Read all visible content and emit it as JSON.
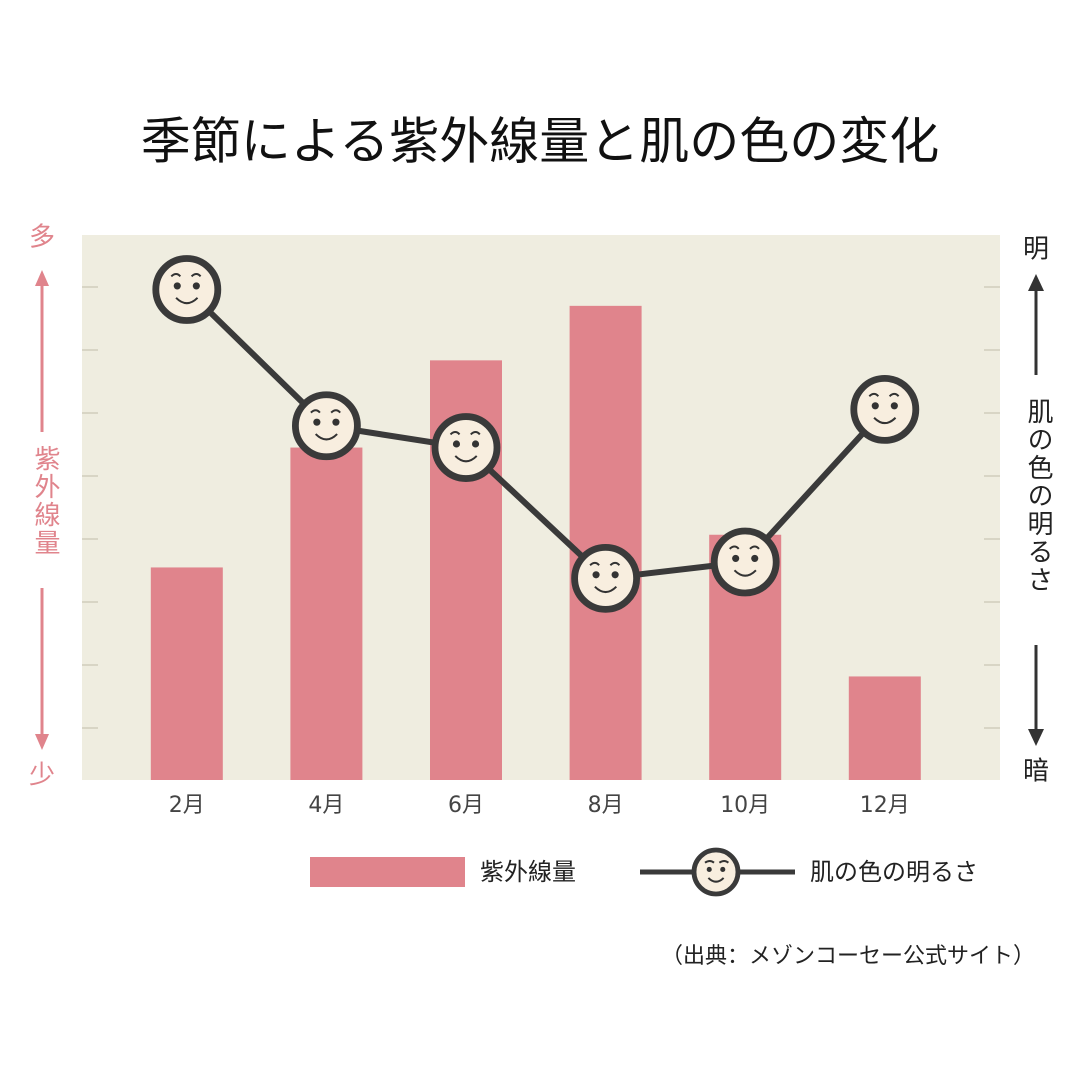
{
  "chart_data": {
    "type": "bar_line",
    "title": "季節による紫外線量と肌の色の変化",
    "left_axis": {
      "top": "多",
      "label": "紫外線量",
      "bottom": "少"
    },
    "right_axis": {
      "top": "明",
      "label": "肌の色の明るさ",
      "bottom": "暗"
    },
    "categories": [
      "2月",
      "4月",
      "6月",
      "8月",
      "10月",
      "12月"
    ],
    "series": [
      {
        "name": "紫外線量",
        "type": "bar",
        "color": "#e0848c",
        "values": [
          39,
          61,
          77,
          87,
          45,
          19
        ]
      },
      {
        "name": "肌の色の明るさ",
        "type": "line",
        "axis": "y2",
        "color": "#3a3a3a",
        "values": [
          90,
          65,
          61,
          37,
          40,
          68
        ]
      }
    ],
    "ylim": [
      0,
      100
    ],
    "y2lim": [
      0,
      100
    ],
    "source": "（出典：メゾンコーセー公式サイト）"
  }
}
